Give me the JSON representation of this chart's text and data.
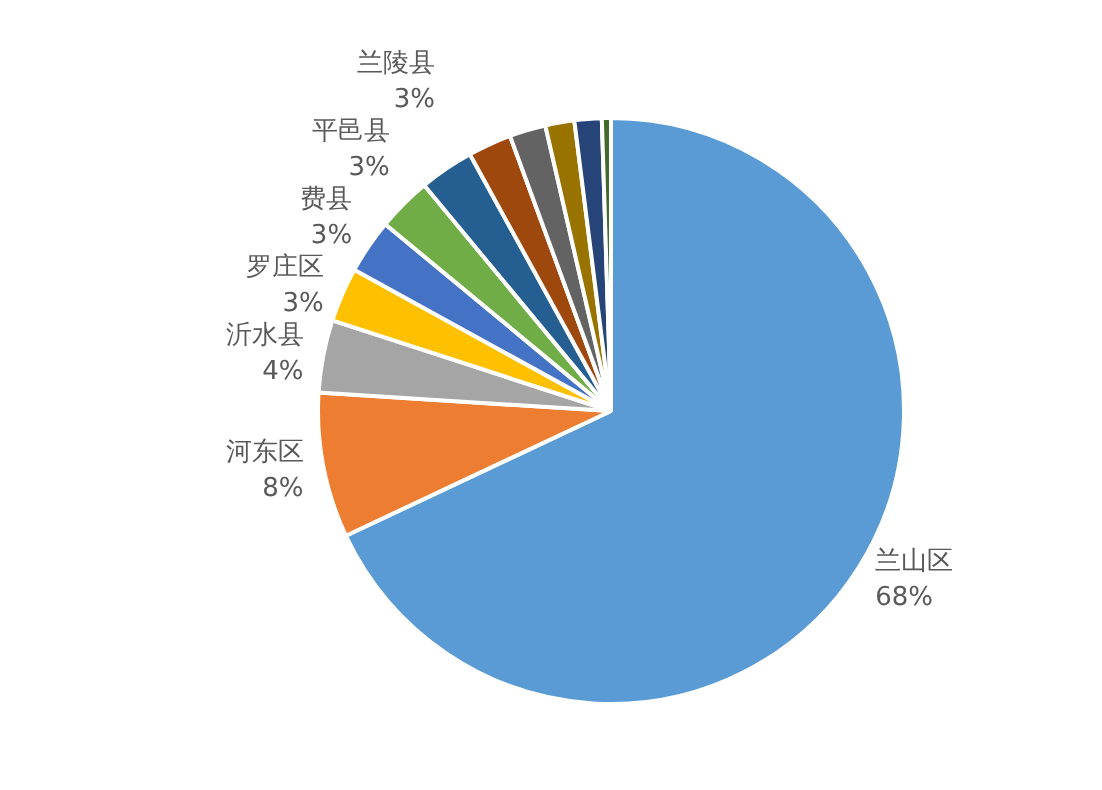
{
  "chart_data": {
    "type": "pie",
    "categories": [
      "兰山区",
      "河东区",
      "沂水县",
      "罗庄区",
      "费县",
      "平邑县",
      "兰陵县",
      null,
      null,
      null,
      null,
      null
    ],
    "values": [
      68,
      8,
      4,
      3,
      3,
      3,
      3,
      2.4,
      2,
      1.6,
      1.5,
      0.5
    ],
    "value_labels": [
      "68%",
      "8%",
      "4%",
      "3%",
      "3%",
      "3%",
      "3%",
      null,
      null,
      null,
      null,
      null
    ],
    "colors": [
      "#5b9bd5",
      "#ed7d31",
      "#a5a5a5",
      "#ffc000",
      "#4472c4",
      "#70ad47",
      "#255e91",
      "#9e480e",
      "#636363",
      "#997300",
      "#264478",
      "#43682b"
    ],
    "legend": false
  }
}
